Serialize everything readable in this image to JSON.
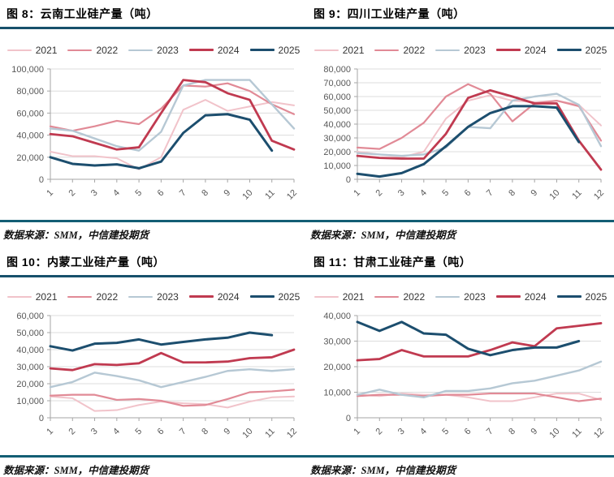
{
  "source_note": "数据来源：SMM，中信建投期货",
  "colors": {
    "rule": "#17506B",
    "separator": "#135E74",
    "grid_line": "#DCDCDC",
    "axis_line": "#A6A6A6",
    "tick_label": "#595959",
    "year_2021": "#F1C3CA",
    "year_2022": "#E18A96",
    "year_2023": "#B6C8D4",
    "year_2024": "#C03A50",
    "year_2025": "#1C4E6E"
  },
  "chart_data": [
    {
      "id": "fig-8",
      "type": "line",
      "title": "图 8：云南工业硅产量（吨）",
      "unit": "吨",
      "months": [
        "1",
        "2",
        "3",
        "4",
        "5",
        "6",
        "7",
        "8",
        "9",
        "10",
        "11",
        "12"
      ],
      "ylim": [
        0,
        100000
      ],
      "ystep": 20000,
      "grid": true,
      "legend_position": "top",
      "series": [
        {
          "name": "2021",
          "color": "#F1C3CA",
          "width": 2,
          "values": [
            25000,
            21000,
            21000,
            19000,
            9000,
            20000,
            63000,
            72000,
            62000,
            66000,
            70000,
            67000
          ]
        },
        {
          "name": "2022",
          "color": "#E18A96",
          "width": 2.2,
          "values": [
            48000,
            44000,
            48000,
            53000,
            50000,
            64000,
            85000,
            84000,
            87000,
            80000,
            68000,
            59000
          ]
        },
        {
          "name": "2023",
          "color": "#B6C8D4",
          "width": 2.4,
          "values": [
            46000,
            44000,
            37000,
            30000,
            26000,
            43000,
            85000,
            90000,
            90000,
            90000,
            68000,
            46000
          ]
        },
        {
          "name": "2024",
          "color": "#C03A50",
          "width": 2.8,
          "values": [
            41000,
            39000,
            33000,
            27000,
            29000,
            60000,
            90000,
            88000,
            78000,
            72000,
            35000,
            27000
          ]
        },
        {
          "name": "2025",
          "color": "#1C4E6E",
          "width": 3,
          "values": [
            20000,
            14000,
            12500,
            13500,
            10000,
            16000,
            42000,
            58000,
            59000,
            54000,
            26000
          ]
        }
      ]
    },
    {
      "id": "fig-9",
      "type": "line",
      "title": "图 9：四川工业硅产量（吨）",
      "unit": "吨",
      "months": [
        "1",
        "2",
        "3",
        "4",
        "5",
        "6",
        "7",
        "8",
        "9",
        "10",
        "11",
        "12"
      ],
      "ylim": [
        0,
        80000
      ],
      "ystep": 10000,
      "grid": true,
      "legend_position": "top",
      "series": [
        {
          "name": "2021",
          "color": "#F1C3CA",
          "width": 2,
          "values": [
            20000,
            18000,
            16000,
            20000,
            44000,
            57000,
            61000,
            57000,
            56000,
            57000,
            54000,
            39000
          ]
        },
        {
          "name": "2022",
          "color": "#E18A96",
          "width": 2.2,
          "values": [
            23000,
            22000,
            30000,
            41000,
            60000,
            69000,
            62000,
            42000,
            55000,
            57000,
            53000,
            28000
          ]
        },
        {
          "name": "2023",
          "color": "#B6C8D4",
          "width": 2.4,
          "values": [
            19000,
            18000,
            17000,
            18000,
            23000,
            38000,
            37000,
            57000,
            60000,
            62000,
            54000,
            24000
          ]
        },
        {
          "name": "2024",
          "color": "#C03A50",
          "width": 2.8,
          "values": [
            17000,
            15500,
            15000,
            15000,
            33000,
            59000,
            64500,
            60000,
            55000,
            55000,
            28000,
            7000
          ]
        },
        {
          "name": "2025",
          "color": "#1C4E6E",
          "width": 3,
          "values": [
            4000,
            2000,
            4500,
            11000,
            24000,
            38000,
            48000,
            53000,
            53000,
            52000,
            27000
          ]
        }
      ]
    },
    {
      "id": "fig-10",
      "type": "line",
      "title": "图 10：内蒙工业硅产量（吨）",
      "unit": "吨",
      "months": [
        "1",
        "2",
        "3",
        "4",
        "5",
        "6",
        "7",
        "8",
        "9",
        "10",
        "11",
        "12"
      ],
      "ylim": [
        0,
        60000
      ],
      "ystep": 10000,
      "grid": true,
      "legend_position": "top",
      "series": [
        {
          "name": "2021",
          "color": "#F1C3CA",
          "width": 2,
          "values": [
            12500,
            11500,
            4000,
            4500,
            7500,
            9500,
            8500,
            8000,
            6000,
            9500,
            12000,
            12500
          ]
        },
        {
          "name": "2022",
          "color": "#E18A96",
          "width": 2.2,
          "values": [
            13000,
            13500,
            13500,
            10500,
            11000,
            10000,
            7000,
            7500,
            11000,
            15000,
            15500,
            16500
          ]
        },
        {
          "name": "2023",
          "color": "#B6C8D4",
          "width": 2.4,
          "values": [
            18000,
            21000,
            26500,
            24500,
            22000,
            18000,
            21000,
            24000,
            27500,
            28500,
            27500,
            28500
          ]
        },
        {
          "name": "2024",
          "color": "#C03A50",
          "width": 2.8,
          "values": [
            29000,
            28000,
            31500,
            31000,
            32000,
            38000,
            32500,
            32500,
            33000,
            35000,
            35500,
            40000
          ]
        },
        {
          "name": "2025",
          "color": "#1C4E6E",
          "width": 3,
          "values": [
            42000,
            39500,
            43500,
            44000,
            46000,
            43000,
            44500,
            46000,
            47000,
            50000,
            48500
          ]
        }
      ]
    },
    {
      "id": "fig-11",
      "type": "line",
      "title": "图 11：甘肃工业硅产量（吨）",
      "unit": "吨",
      "months": [
        "1",
        "2",
        "3",
        "4",
        "5",
        "6",
        "7",
        "8",
        "9",
        "10",
        "11",
        "12"
      ],
      "ylim": [
        0,
        40000
      ],
      "ystep": 10000,
      "grid": true,
      "legend_position": "top",
      "series": [
        {
          "name": "2021",
          "color": "#F1C3CA",
          "width": 2,
          "values": [
            9000,
            8500,
            9500,
            9000,
            9000,
            8000,
            6500,
            6500,
            8000,
            9500,
            9500,
            7000
          ]
        },
        {
          "name": "2022",
          "color": "#E18A96",
          "width": 2.2,
          "values": [
            8500,
            9000,
            9000,
            8500,
            9000,
            9000,
            9500,
            9500,
            9500,
            8000,
            6500,
            7500
          ]
        },
        {
          "name": "2023",
          "color": "#B6C8D4",
          "width": 2.4,
          "values": [
            9000,
            11000,
            9000,
            8000,
            10500,
            10500,
            11500,
            13500,
            14500,
            16500,
            18500,
            22000
          ]
        },
        {
          "name": "2024",
          "color": "#C03A50",
          "width": 2.8,
          "values": [
            22500,
            23000,
            26500,
            24000,
            24000,
            24000,
            26500,
            29500,
            28000,
            35000,
            36000,
            37000
          ]
        },
        {
          "name": "2025",
          "color": "#1C4E6E",
          "width": 3,
          "values": [
            37500,
            34000,
            37500,
            33000,
            32500,
            27000,
            24500,
            26500,
            27500,
            27500,
            30000
          ]
        }
      ]
    }
  ]
}
